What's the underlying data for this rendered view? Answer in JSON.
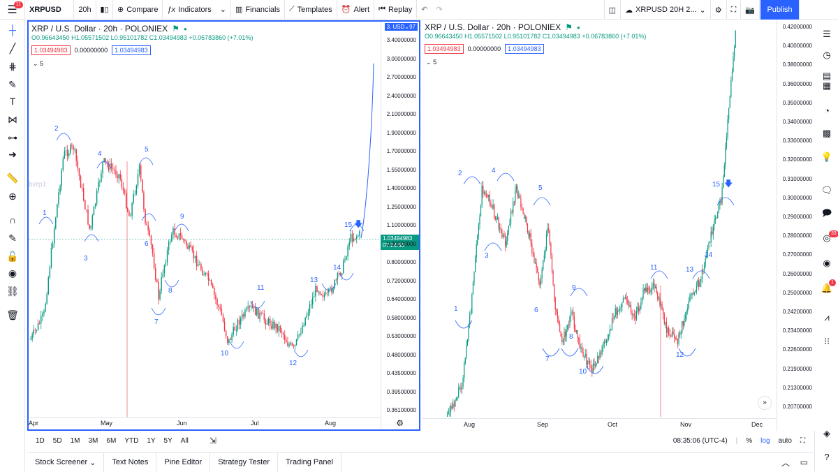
{
  "topbar": {
    "notif_count": "11",
    "symbol": "XRPUSD",
    "interval": "20h",
    "compare": "Compare",
    "indicators": "Indicators",
    "financials": "Financials",
    "templates": "Templates",
    "alert": "Alert",
    "replay": "Replay",
    "layout_name": "XRPUSD 20H 2...",
    "publish": "Publish"
  },
  "pane_a": {
    "title": "XRP / U.S. Dollar · 20h · POLONIEX",
    "ohlc": {
      "o": "O0.96643450",
      "h": "H1.05571502",
      "l": "L0.95101782",
      "c": "C1.03494983",
      "chg": "+0.06783860 (+7.01%)"
    },
    "ind_values": [
      "1.03494983",
      "0.00000000",
      "1.03494983"
    ],
    "collapse_count": "5",
    "usd": "USD",
    "usd_left": "3.",
    "usd_right": "97",
    "watermark": "bxrp1",
    "current_price": "1.03494983",
    "countdown": "07:24:53",
    "price_labels": [
      "3.40000000",
      "3.00000000",
      "2.70000000",
      "2.40000000",
      "2.10000000",
      "1.90000000",
      "1.70000000",
      "1.55000000",
      "1.40000000",
      "1.25000000",
      "1.10000000",
      "0.90000000",
      "0.80000000",
      "0.72000000",
      "0.64000000",
      "0.58000000",
      "0.53000000",
      "0.48000000",
      "0.43500000",
      "0.39500000",
      "0.36100000"
    ],
    "time_labels": [
      "Apr",
      "May",
      "Jun",
      "Jul",
      "Aug"
    ],
    "wave_labels": [
      "1",
      "2",
      "3",
      "4",
      "5",
      "6",
      "7",
      "8",
      "9",
      "10",
      "11",
      "12",
      "13",
      "14",
      "15"
    ]
  },
  "pane_b": {
    "title": "XRP / U.S. Dollar · 20h · POLONIEX",
    "ohlc": {
      "o": "O0.96643450",
      "h": "H1.05571502",
      "l": "L0.95101782",
      "c": "C1.03494983",
      "chg": "+0.06783860 (+7.01%)"
    },
    "ind_values": [
      "1.03494983",
      "0.00000000",
      "1.03494983"
    ],
    "collapse_count": "5",
    "price_labels": [
      "0.42000000",
      "0.40000000",
      "0.38000000",
      "0.36000000",
      "0.35000000",
      "0.34000000",
      "0.33000000",
      "0.32000000",
      "0.31000000",
      "0.30000000",
      "0.29000000",
      "0.28000000",
      "0.27000000",
      "0.26000000",
      "0.25000000",
      "0.24200000",
      "0.23400000",
      "0.22600000",
      "0.21900000",
      "0.21300000",
      "0.20700000"
    ],
    "time_labels": [
      "Aug",
      "Sep",
      "Oct",
      "Nov",
      "Dec"
    ],
    "wave_labels": [
      "1",
      "2",
      "3",
      "4",
      "5",
      "6",
      "7",
      "8",
      "9",
      "10",
      "11",
      "12",
      "13",
      "14",
      "15"
    ]
  },
  "rangebar": {
    "ranges": [
      "1D",
      "5D",
      "1M",
      "3M",
      "6M",
      "YTD",
      "1Y",
      "5Y",
      "All"
    ],
    "time": "08:35:06 (UTC-4)",
    "percent": "%",
    "log": "log",
    "auto": "auto"
  },
  "bottombar": {
    "tabs": [
      "Stock Screener",
      "Text Notes",
      "Pine Editor",
      "Strategy Tester",
      "Trading Panel"
    ]
  },
  "righttools": {
    "badge_a": "33",
    "badge_b": "1"
  },
  "colors": {
    "up": "#089981",
    "down": "#f23645",
    "accent": "#2962ff",
    "wave": "#2962ff"
  }
}
